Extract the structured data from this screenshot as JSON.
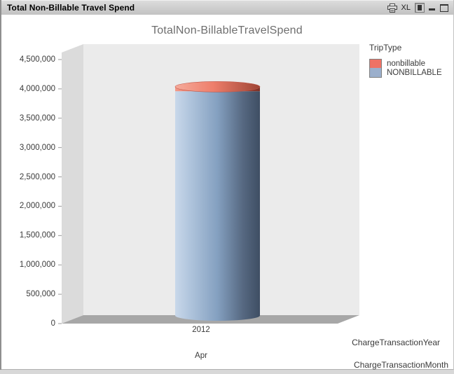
{
  "window": {
    "title": "Total Non-Billable Travel Spend",
    "excel_label": "XL"
  },
  "chart": {
    "title": "TotalNon-BillableTravelSpend"
  },
  "legend": {
    "title": "TripType",
    "items": [
      {
        "label": "nonbillable",
        "color": "#EF7265"
      },
      {
        "label": "NONBILLABLE",
        "color": "#9BAFCC"
      }
    ]
  },
  "axes": {
    "y_ticks": [
      "4,500,000",
      "4,000,000",
      "3,500,000",
      "3,000,000",
      "2,500,000",
      "2,000,000",
      "1,500,000",
      "1,000,000",
      "500,000",
      "0"
    ],
    "year_tick": "2012",
    "month_tick": "Apr",
    "year_axis_title": "ChargeTransactionYear",
    "month_axis_title": "ChargeTransactionMonth"
  },
  "chart_data": {
    "type": "bar",
    "variant": "3d-cylinder-stacked",
    "title": "TotalNon-BillableTravelSpend",
    "categories": [
      "2012 Apr"
    ],
    "series": [
      {
        "name": "nonbillable",
        "color": "#EF7265",
        "values": [
          165000
        ]
      },
      {
        "name": "NONBILLABLE",
        "color": "#9BAFCC",
        "values": [
          3960000
        ]
      }
    ],
    "stacked": true,
    "legend_title": "TripType",
    "legend_position": "right",
    "xlabel": [
      "ChargeTransactionYear",
      "ChargeTransactionMonth"
    ],
    "ylabel": "",
    "ylim": [
      0,
      4500000
    ],
    "y_tick_step": 500000,
    "grid": false
  }
}
